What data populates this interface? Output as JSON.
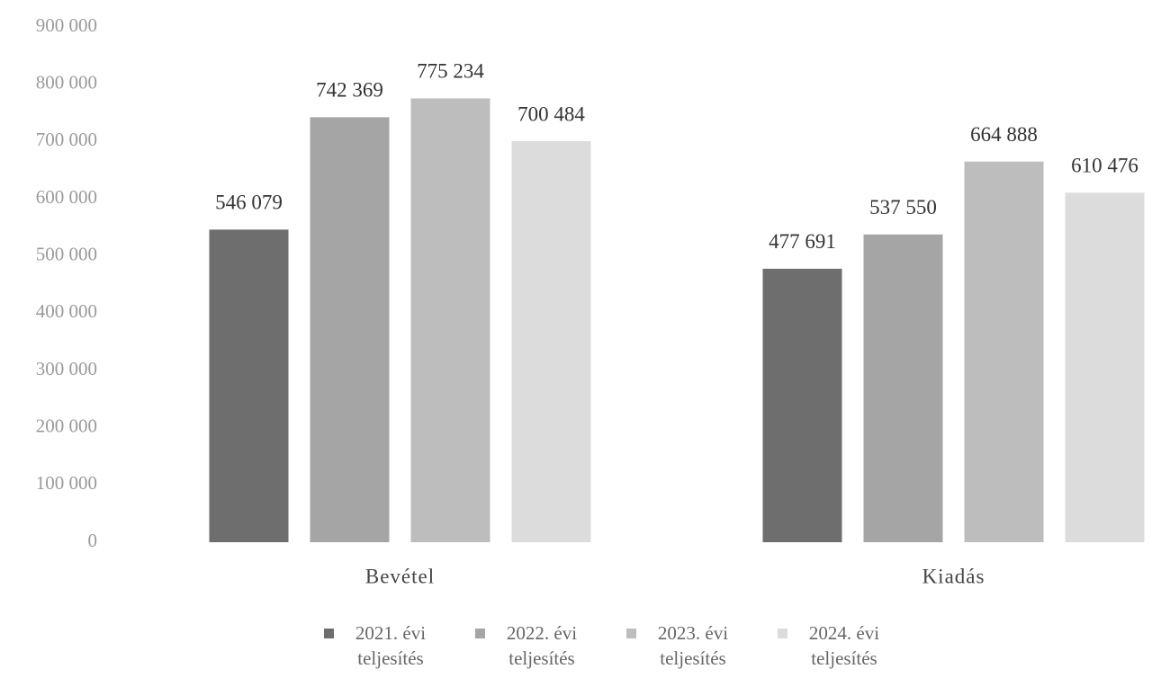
{
  "chart_data": {
    "type": "bar",
    "categories": [
      "Bevétel",
      "Kiadás"
    ],
    "series": [
      {
        "name": "2021. évi teljesítés",
        "color": "#6e6e6e",
        "values": [
          546079,
          477691
        ],
        "value_labels": [
          "546 079",
          "477 691"
        ]
      },
      {
        "name": "2022. évi teljesítés",
        "color": "#a5a5a5",
        "values": [
          742369,
          537550
        ],
        "value_labels": [
          "742 369",
          "537 550"
        ]
      },
      {
        "name": "2023. évi teljesítés",
        "color": "#bdbdbd",
        "values": [
          775234,
          664888
        ],
        "value_labels": [
          "775 234",
          "664 888"
        ]
      },
      {
        "name": "2024. évi teljesítés",
        "color": "#dcdcdc",
        "values": [
          700484,
          610476
        ],
        "value_labels": [
          "700 484",
          "610 476"
        ]
      }
    ],
    "ylim": [
      0,
      900000
    ],
    "yticks": [
      0,
      {
        "value": 100000,
        "label": "100 000"
      },
      {
        "value": 200000,
        "label": "200 000"
      },
      {
        "value": 300000,
        "label": "300 000"
      },
      {
        "value": 400000,
        "label": "400 000"
      },
      {
        "value": 500000,
        "label": "500 000"
      },
      {
        "value": 600000,
        "label": "600 000"
      },
      {
        "value": 700000,
        "label": "700 000"
      },
      {
        "value": 800000,
        "label": "800 000"
      },
      {
        "value": 900000,
        "label": "900 000"
      }
    ],
    "grid": false
  }
}
